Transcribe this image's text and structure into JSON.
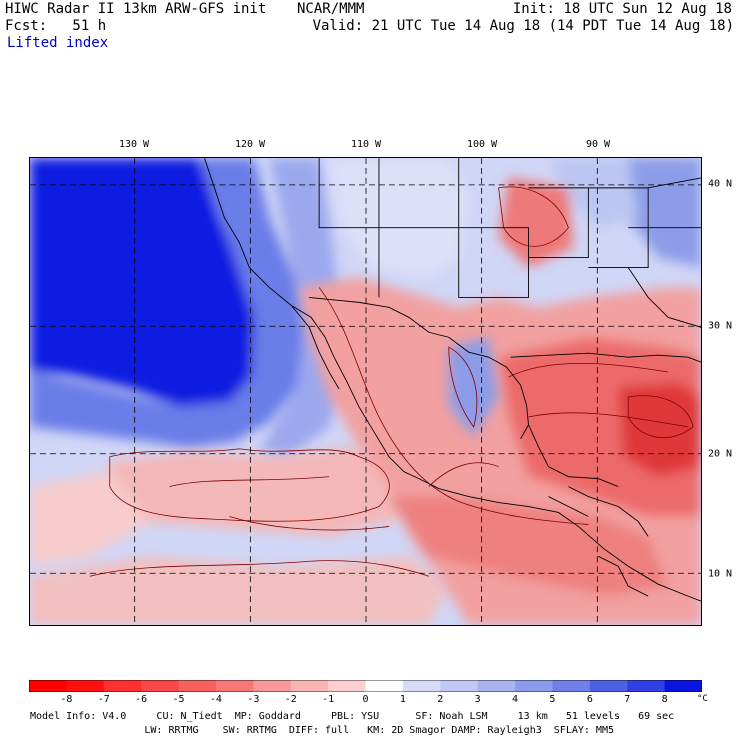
{
  "header": {
    "title": "HIWC Radar II 13km ARW-GFS init",
    "org": "NCAR/MMM",
    "init": "Init: 18 UTC Sun 12 Aug 18",
    "fcst": "Fcst:   51 h",
    "valid": "Valid: 21 UTC Tue 14 Aug 18 (14 PDT Tue 14 Aug 18)",
    "field": "Lifted index"
  },
  "map": {
    "lon_labels": [
      "130 W",
      "120 W",
      "110 W",
      "100 W",
      "90 W"
    ],
    "lat_labels": [
      "40 N",
      "30 N",
      "20 N",
      "10 N"
    ],
    "colors": {
      "ocean_stable": "#0a1fe0",
      "stable_light": "#9fb0f0",
      "unstable_light": "#f4b0b0",
      "unstable_mid": "#f07070",
      "unstable_strong": "#e03030",
      "contour": "#800000",
      "border": "#000000"
    }
  },
  "colorbar": {
    "ticks": [
      "-8",
      "-7",
      "-6",
      "-5",
      "-4",
      "-3",
      "-2",
      "-1",
      "0",
      "1",
      "2",
      "3",
      "4",
      "5",
      "6",
      "7",
      "8"
    ],
    "unit": "°C",
    "colors": [
      "#ff0000",
      "#ff1010",
      "#ff3030",
      "#f84848",
      "#f86060",
      "#f87878",
      "#f89898",
      "#fab4b4",
      "#fcd0d0",
      "#ffffff",
      "#d8dcf8",
      "#c0c8f4",
      "#a8b4f0",
      "#8c9cec",
      "#7080e8",
      "#5060e4",
      "#3040e4",
      "#0a14e0"
    ]
  },
  "footer": {
    "line1": "Model Info: V4.0     CU: N_Tiedt  MP: Goddard     PBL: YSU      SF: Noah LSM     13 km   51 levels   69 sec",
    "line2": "                   LW: RRTMG    SW: RRTMG  DIFF: full   KM: 2D Smagor DAMP: Rayleigh3  SFLAY: MM5"
  }
}
